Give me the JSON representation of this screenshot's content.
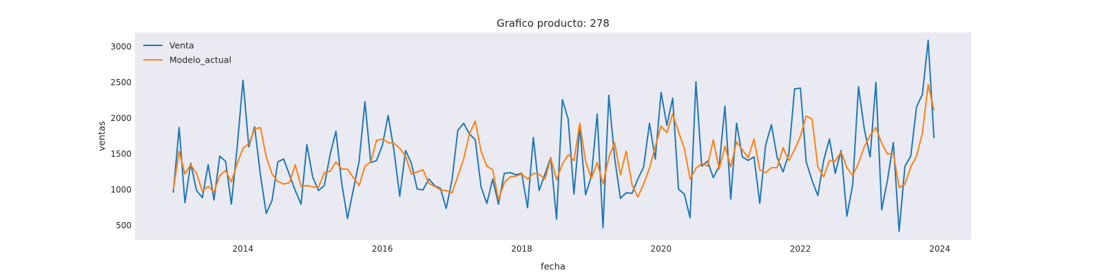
{
  "chart_data": {
    "type": "line",
    "title": "Grafico producto: 278",
    "xlabel": "fecha",
    "ylabel": "ventas",
    "xlim": [
      2012.45,
      2024.45
    ],
    "ylim": [
      300,
      3200
    ],
    "x_ticks": [
      2014,
      2016,
      2018,
      2020,
      2022,
      2024
    ],
    "x_tick_labels": [
      "2014",
      "2016",
      "2018",
      "2020",
      "2022",
      "2024"
    ],
    "y_ticks": [
      500,
      1000,
      1500,
      2000,
      2500,
      3000
    ],
    "y_tick_labels": [
      "500",
      "1000",
      "1500",
      "2000",
      "2500",
      "3000"
    ],
    "grid": false,
    "legend_position": "top-left",
    "background": "#eaeaf2",
    "x_start": 2013.0,
    "x_step": 0.0833333,
    "series": [
      {
        "name": "Venta",
        "color": "#1f77b4",
        "values": [
          960,
          1870,
          820,
          1370,
          990,
          890,
          1350,
          860,
          1470,
          1400,
          800,
          1600,
          2530,
          1600,
          1880,
          1210,
          670,
          850,
          1390,
          1430,
          1210,
          990,
          800,
          1630,
          1180,
          990,
          1060,
          1490,
          1820,
          1090,
          600,
          1000,
          1400,
          2230,
          1380,
          1410,
          1620,
          2040,
          1550,
          910,
          1550,
          1370,
          1010,
          1000,
          1150,
          1060,
          1020,
          740,
          1140,
          1830,
          1930,
          1780,
          1700,
          1040,
          810,
          1150,
          800,
          1230,
          1240,
          1210,
          1230,
          750,
          1730,
          990,
          1220,
          1450,
          590,
          2260,
          1990,
          940,
          1880,
          930,
          1190,
          2060,
          470,
          2320,
          1450,
          880,
          960,
          950,
          1150,
          1320,
          1930,
          1430,
          2360,
          1900,
          2280,
          1010,
          940,
          610,
          2510,
          1330,
          1400,
          1170,
          1330,
          2170,
          870,
          1930,
          1460,
          1410,
          1460,
          810,
          1620,
          1910,
          1450,
          1250,
          1500,
          2410,
          2420,
          1390,
          1130,
          920,
          1410,
          1710,
          1230,
          1550,
          630,
          1070,
          2440,
          1850,
          1460,
          2500,
          720,
          1140,
          1660,
          420,
          1330,
          1470,
          2160,
          2330,
          3090,
          1720
        ]
      },
      {
        "name": "Modelo_actual",
        "color": "#ff7f0e",
        "values": [
          1000,
          1540,
          1220,
          1350,
          1230,
          980,
          1050,
          970,
          1200,
          1270,
          1110,
          1370,
          1580,
          1640,
          1850,
          1870,
          1460,
          1220,
          1120,
          1080,
          1100,
          1350,
          1050,
          1060,
          1040,
          1040,
          1240,
          1260,
          1390,
          1290,
          1290,
          1170,
          1060,
          1330,
          1390,
          1690,
          1710,
          1660,
          1650,
          1580,
          1470,
          1220,
          1250,
          1280,
          1090,
          1050,
          1000,
          990,
          960,
          1190,
          1430,
          1780,
          1960,
          1540,
          1330,
          1280,
          860,
          1100,
          1180,
          1190,
          1220,
          1150,
          1230,
          1220,
          1150,
          1440,
          1140,
          1360,
          1490,
          1410,
          1930,
          1400,
          1160,
          1380,
          1080,
          1450,
          1660,
          1210,
          1540,
          1070,
          900,
          1080,
          1300,
          1600,
          1890,
          1800,
          2060,
          1810,
          1580,
          1150,
          1300,
          1370,
          1330,
          1700,
          1290,
          1610,
          1320,
          1670,
          1560,
          1450,
          1710,
          1280,
          1240,
          1310,
          1310,
          1590,
          1410,
          1560,
          1750,
          2030,
          1990,
          1320,
          1180,
          1410,
          1400,
          1530,
          1310,
          1200,
          1370,
          1600,
          1760,
          1870,
          1650,
          1500,
          1510,
          1030,
          1080,
          1320,
          1470,
          1790,
          2470,
          2110
        ]
      }
    ]
  }
}
